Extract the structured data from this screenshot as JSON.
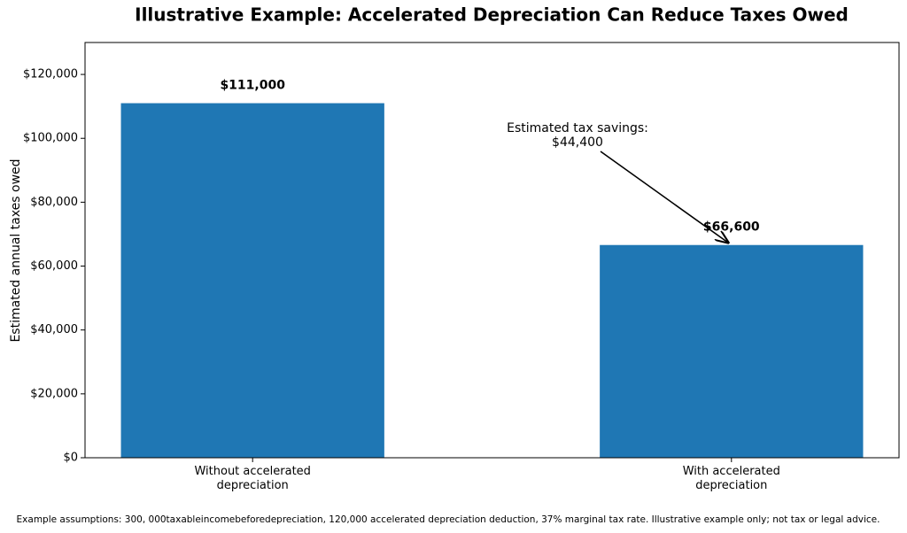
{
  "chart_data": {
    "type": "bar",
    "title": "Illustrative Example: Accelerated Depreciation Can Reduce Taxes Owed",
    "ylabel": "Estimated annual taxes owed",
    "categories": [
      "Without accelerated\ndepreciation",
      "With accelerated\ndepreciation"
    ],
    "values": [
      111000,
      66600
    ],
    "value_labels": [
      "$111,000",
      "$66,600"
    ],
    "color": "#1f77b4",
    "ylim": [
      0,
      130000
    ],
    "yticks": [
      {
        "value": 0,
        "label": "$0"
      },
      {
        "value": 20000,
        "label": "$20,000"
      },
      {
        "value": 40000,
        "label": "$40,000"
      },
      {
        "value": 60000,
        "label": "$60,000"
      },
      {
        "value": 80000,
        "label": "$80,000"
      },
      {
        "value": 100000,
        "label": "$100,000"
      },
      {
        "value": 120000,
        "label": "$120,000"
      }
    ],
    "grid": false,
    "annotation": "Estimated tax savings:\n$44,400",
    "footnote": "Example assumptions: 300, 000taxableincomebeforedepreciation, 120,000 accelerated depreciation deduction, 37% marginal tax rate. Illustrative example only; not tax or legal advice."
  }
}
